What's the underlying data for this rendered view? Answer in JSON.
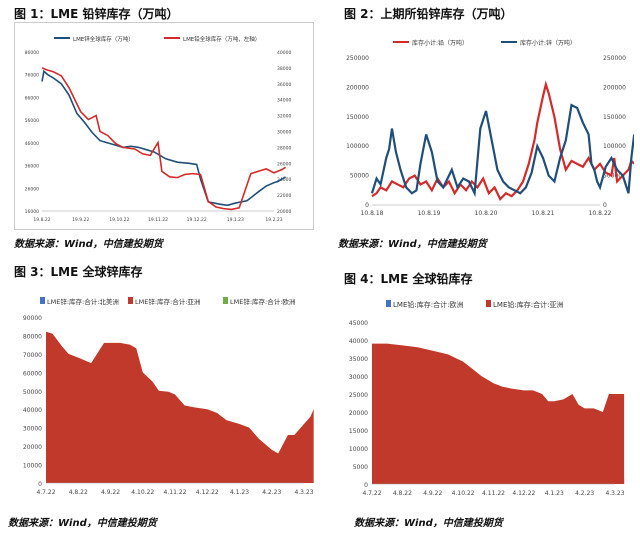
{
  "charts": {
    "c1": {
      "title": "图 1：LME 铅锌库存（万吨）",
      "source": "数据来源：Wind，中信建投期货"
    },
    "c2": {
      "title": "图 2：上期所铅锌库存（万吨）",
      "source": "数据来源：Wind，中信建投期货"
    },
    "c3": {
      "title": "图 3：LME 全球锌库存",
      "source": "数据来源：Wind，中信建投期货"
    },
    "c4": {
      "title": "图 4：LME 全球铅库存",
      "source": "数据来源：Wind，中信建投期货"
    }
  },
  "colors": {
    "blue": "#1f4e79",
    "red": "#d42a2a",
    "area_red": "#c0392b",
    "area_blue": "#4472c4",
    "area_green": "#70ad47"
  },
  "chart_data": [
    {
      "type": "line",
      "categories": [
        "19.8.22",
        "19.9.22",
        "19.10.22",
        "19.11.22",
        "19.12.22",
        "19.1.23",
        "19.2.23"
      ],
      "y_left": {
        "ticks": [
          16000,
          26000,
          36000,
          46000,
          56000,
          66000,
          76000,
          86000
        ],
        "lim": [
          16000,
          86000
        ]
      },
      "y_right": {
        "ticks": [
          20000,
          22000,
          24000,
          26000,
          28000,
          30000,
          32000,
          34000,
          36000,
          38000,
          40000
        ],
        "lim": [
          20000,
          40000
        ]
      },
      "legend": "top",
      "series": [
        {
          "name": "LME锌全球库存（万吨）",
          "axis": "left",
          "color": "#1f4e79",
          "x": [
            0,
            0.05,
            0.15,
            0.3,
            0.5,
            0.7,
            0.9,
            1.1,
            1.3,
            1.5,
            1.7,
            1.9,
            2.1,
            2.3,
            2.5,
            2.7,
            2.9,
            3.2,
            3.5,
            3.8,
            4.0,
            4.1,
            4.3,
            4.6,
            4.8,
            5.0,
            5.3,
            5.6,
            5.8,
            6.0,
            6.1,
            6.3
          ],
          "values": [
            73000,
            77500,
            76000,
            74500,
            72000,
            67000,
            59000,
            55000,
            50500,
            47000,
            46000,
            45000,
            44000,
            44500,
            44000,
            43000,
            42000,
            39000,
            37500,
            37000,
            36500,
            30000,
            20000,
            19000,
            18500,
            19500,
            20500,
            24500,
            27000,
            28500,
            29000,
            31000
          ]
        },
        {
          "name": "LME铅全球库存（万吨，左轴）",
          "axis": "right",
          "color": "#d42a2a",
          "x": [
            0,
            0.1,
            0.3,
            0.5,
            0.7,
            0.8,
            1.0,
            1.2,
            1.4,
            1.5,
            1.7,
            1.9,
            2.1,
            2.4,
            2.6,
            2.8,
            3.0,
            3.1,
            3.3,
            3.5,
            3.7,
            3.9,
            4.1,
            4.3,
            4.5,
            4.7,
            4.9,
            5.1,
            5.4,
            5.6,
            5.8,
            6.0,
            6.2,
            6.3
          ],
          "values": [
            38000,
            37800,
            37500,
            37000,
            35500,
            34500,
            32500,
            31500,
            32000,
            30000,
            29500,
            28500,
            28000,
            27800,
            27200,
            27000,
            28600,
            25000,
            24300,
            24200,
            24600,
            24700,
            24600,
            21200,
            20500,
            20300,
            20200,
            20400,
            24700,
            25000,
            25300,
            24800,
            25200,
            25500
          ]
        }
      ]
    },
    {
      "type": "line",
      "categories": [
        "10.8.18",
        "10.8.19",
        "10.8.20",
        "10.8.21",
        "10.8.22"
      ],
      "y_left": {
        "ticks": [
          0,
          50000,
          100000,
          150000,
          200000,
          250000
        ],
        "lim": [
          0,
          250000
        ]
      },
      "y_right": {
        "ticks": [
          0,
          50000,
          100000,
          150000,
          200000,
          250000
        ],
        "lim": [
          0,
          250000
        ]
      },
      "legend": "top",
      "series": [
        {
          "name": "库存小计:铅（万吨）",
          "axis": "left",
          "color": "#d42a2a",
          "x": [
            0,
            0.08,
            0.15,
            0.25,
            0.35,
            0.45,
            0.55,
            0.65,
            0.75,
            0.85,
            0.95,
            1.05,
            1.15,
            1.25,
            1.35,
            1.45,
            1.55,
            1.65,
            1.75,
            1.85,
            1.95,
            2.05,
            2.15,
            2.25,
            2.35,
            2.45,
            2.55,
            2.65,
            2.75,
            2.85,
            2.9,
            3.0,
            3.05,
            3.1,
            3.2,
            3.3,
            3.4,
            3.5,
            3.6,
            3.7,
            3.8,
            3.9,
            4.0,
            4.1,
            4.2,
            4.25,
            4.3,
            4.4,
            4.5,
            4.55,
            4.6
          ],
          "values": [
            15000,
            20000,
            30000,
            25000,
            40000,
            35000,
            30000,
            45000,
            50000,
            35000,
            40000,
            25000,
            45000,
            30000,
            40000,
            20000,
            35000,
            25000,
            40000,
            30000,
            45000,
            20000,
            30000,
            10000,
            20000,
            15000,
            25000,
            40000,
            70000,
            110000,
            140000,
            185000,
            205000,
            190000,
            150000,
            95000,
            60000,
            75000,
            70000,
            65000,
            80000,
            60000,
            70000,
            55000,
            50000,
            80000,
            40000,
            50000,
            60000,
            75000,
            70000
          ]
        },
        {
          "name": "库存小计:锌（万吨）",
          "axis": "right",
          "color": "#1f4e79",
          "x": [
            0,
            0.08,
            0.15,
            0.25,
            0.3,
            0.35,
            0.42,
            0.5,
            0.6,
            0.7,
            0.78,
            0.85,
            0.95,
            1.05,
            1.15,
            1.25,
            1.3,
            1.4,
            1.5,
            1.6,
            1.7,
            1.8,
            1.9,
            2.0,
            2.1,
            2.2,
            2.3,
            2.4,
            2.5,
            2.6,
            2.7,
            2.8,
            2.9,
            3.0,
            3.1,
            3.2,
            3.3,
            3.4,
            3.5,
            3.6,
            3.7,
            3.8,
            3.85,
            3.9,
            3.95,
            4.0,
            4.1,
            4.2,
            4.3,
            4.4,
            4.5,
            4.55,
            4.6
          ],
          "values": [
            20000,
            45000,
            35000,
            80000,
            95000,
            130000,
            90000,
            60000,
            30000,
            20000,
            25000,
            70000,
            120000,
            90000,
            40000,
            30000,
            40000,
            60000,
            30000,
            45000,
            40000,
            20000,
            130000,
            160000,
            110000,
            60000,
            40000,
            30000,
            25000,
            20000,
            30000,
            55000,
            100000,
            80000,
            50000,
            40000,
            80000,
            110000,
            170000,
            165000,
            140000,
            120000,
            70000,
            60000,
            40000,
            30000,
            65000,
            80000,
            60000,
            50000,
            20000,
            80000,
            120000
          ]
        }
      ]
    },
    {
      "type": "area",
      "categories": [
        "4.7.22",
        "4.8.22",
        "4.9.22",
        "4.10.22",
        "4.11.22",
        "4.12.22",
        "4.1.23",
        "4.2.23",
        "4.3.23"
      ],
      "ylim": [
        0,
        90000
      ],
      "yticks": [
        0,
        10000,
        20000,
        30000,
        40000,
        50000,
        60000,
        70000,
        80000,
        90000
      ],
      "legend": "top",
      "series": [
        {
          "name": "LME锌:库存:合计:北美洲",
          "color": "#4472c4",
          "x": [
            0,
            0.5,
            1,
            1.5,
            2,
            2.5,
            3,
            3.5,
            4,
            4.5,
            5,
            5.5,
            6,
            6.5,
            7,
            7.5,
            8,
            8.3
          ],
          "values": [
            8000,
            7000,
            6000,
            5000,
            4000,
            3500,
            3000,
            2500,
            2000,
            1800,
            1500,
            1200,
            1000,
            800,
            600,
            500,
            400,
            300
          ]
        },
        {
          "name": "LME锌:库存:合计:亚洲",
          "color": "#c0392b",
          "x": [
            0,
            0.2,
            0.5,
            0.7,
            1,
            1.4,
            1.8,
            2.0,
            2.3,
            2.6,
            2.8,
            3.0,
            3.3,
            3.5,
            3.8,
            4.0,
            4.3,
            4.6,
            5.0,
            5.3,
            5.6,
            6.0,
            6.3,
            6.6,
            7.0,
            7.2,
            7.5,
            7.7,
            8.0,
            8.2,
            8.3
          ],
          "values": [
            82000,
            81000,
            74000,
            70000,
            68000,
            65000,
            76000,
            76000,
            76000,
            75000,
            73000,
            60000,
            55000,
            50000,
            49500,
            48000,
            42000,
            41000,
            40000,
            38000,
            34000,
            32000,
            30000,
            24000,
            18000,
            16000,
            26000,
            26000,
            32000,
            36000,
            40000
          ]
        },
        {
          "name": "LME锌:库存:合计:欧洲",
          "color": "#70ad47",
          "x": [
            0,
            8.3
          ],
          "values": [
            0,
            0
          ]
        }
      ]
    },
    {
      "type": "area",
      "categories": [
        "4.7.22",
        "4.8.22",
        "4.9.22",
        "4.10.22",
        "4.11.22",
        "4.12.22",
        "4.1.23",
        "4.2.23",
        "4.3.23"
      ],
      "ylim": [
        0,
        45000
      ],
      "yticks": [
        0,
        5000,
        10000,
        15000,
        20000,
        25000,
        30000,
        35000,
        40000,
        45000
      ],
      "legend": "top",
      "series": [
        {
          "name": "LME铅:库存:合计:欧洲",
          "color": "#4472c4",
          "x": [
            0,
            1,
            2,
            3,
            4,
            5,
            6,
            7,
            8,
            8.3
          ],
          "values": [
            3000,
            3000,
            2800,
            2600,
            2400,
            2200,
            2000,
            1800,
            1600,
            1500
          ]
        },
        {
          "name": "LME铅:库存:合计:亚洲",
          "color": "#c0392b",
          "x": [
            0,
            0.5,
            1,
            1.5,
            2,
            2.5,
            3,
            3.3,
            3.6,
            3.8,
            4.0,
            4.3,
            4.6,
            5.0,
            5.3,
            5.6,
            5.8,
            6.0,
            6.3,
            6.6,
            6.8,
            7.0,
            7.3,
            7.6,
            7.8,
            8.0,
            8.3
          ],
          "values": [
            39000,
            39000,
            38500,
            38000,
            37000,
            36000,
            34000,
            32000,
            30000,
            29000,
            28000,
            27000,
            26500,
            26000,
            26000,
            25000,
            23000,
            23000,
            23500,
            25000,
            22000,
            21000,
            21000,
            20000,
            25000,
            25000,
            25000
          ]
        }
      ]
    }
  ]
}
